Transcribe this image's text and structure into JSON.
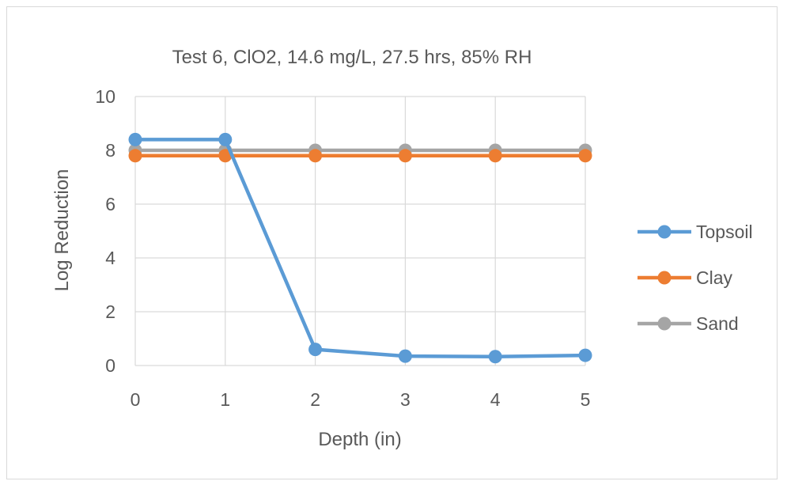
{
  "chart_data": {
    "type": "line",
    "title": "Test 6, ClO2, 14.6 mg/L, 27.5 hrs, 85% RH",
    "xlabel": "Depth (in)",
    "ylabel": "Log Reduction",
    "x": [
      0,
      1,
      2,
      3,
      4,
      5
    ],
    "xlim": [
      0,
      5
    ],
    "ylim": [
      0,
      10
    ],
    "yticks": [
      0,
      2,
      4,
      6,
      8,
      10
    ],
    "xticks": [
      0,
      1,
      2,
      3,
      4,
      5
    ],
    "grid": true,
    "legend_position": "right",
    "series": [
      {
        "name": "Topsoil",
        "color": "#5b9bd5",
        "values": [
          8.4,
          8.4,
          0.6,
          0.35,
          0.33,
          0.38
        ]
      },
      {
        "name": "Clay",
        "color": "#ed7d31",
        "values": [
          7.8,
          7.8,
          7.8,
          7.8,
          7.8,
          7.8
        ]
      },
      {
        "name": "Sand",
        "color": "#a5a5a5",
        "values": [
          8.0,
          8.0,
          8.0,
          8.0,
          8.0,
          8.0
        ]
      }
    ]
  }
}
